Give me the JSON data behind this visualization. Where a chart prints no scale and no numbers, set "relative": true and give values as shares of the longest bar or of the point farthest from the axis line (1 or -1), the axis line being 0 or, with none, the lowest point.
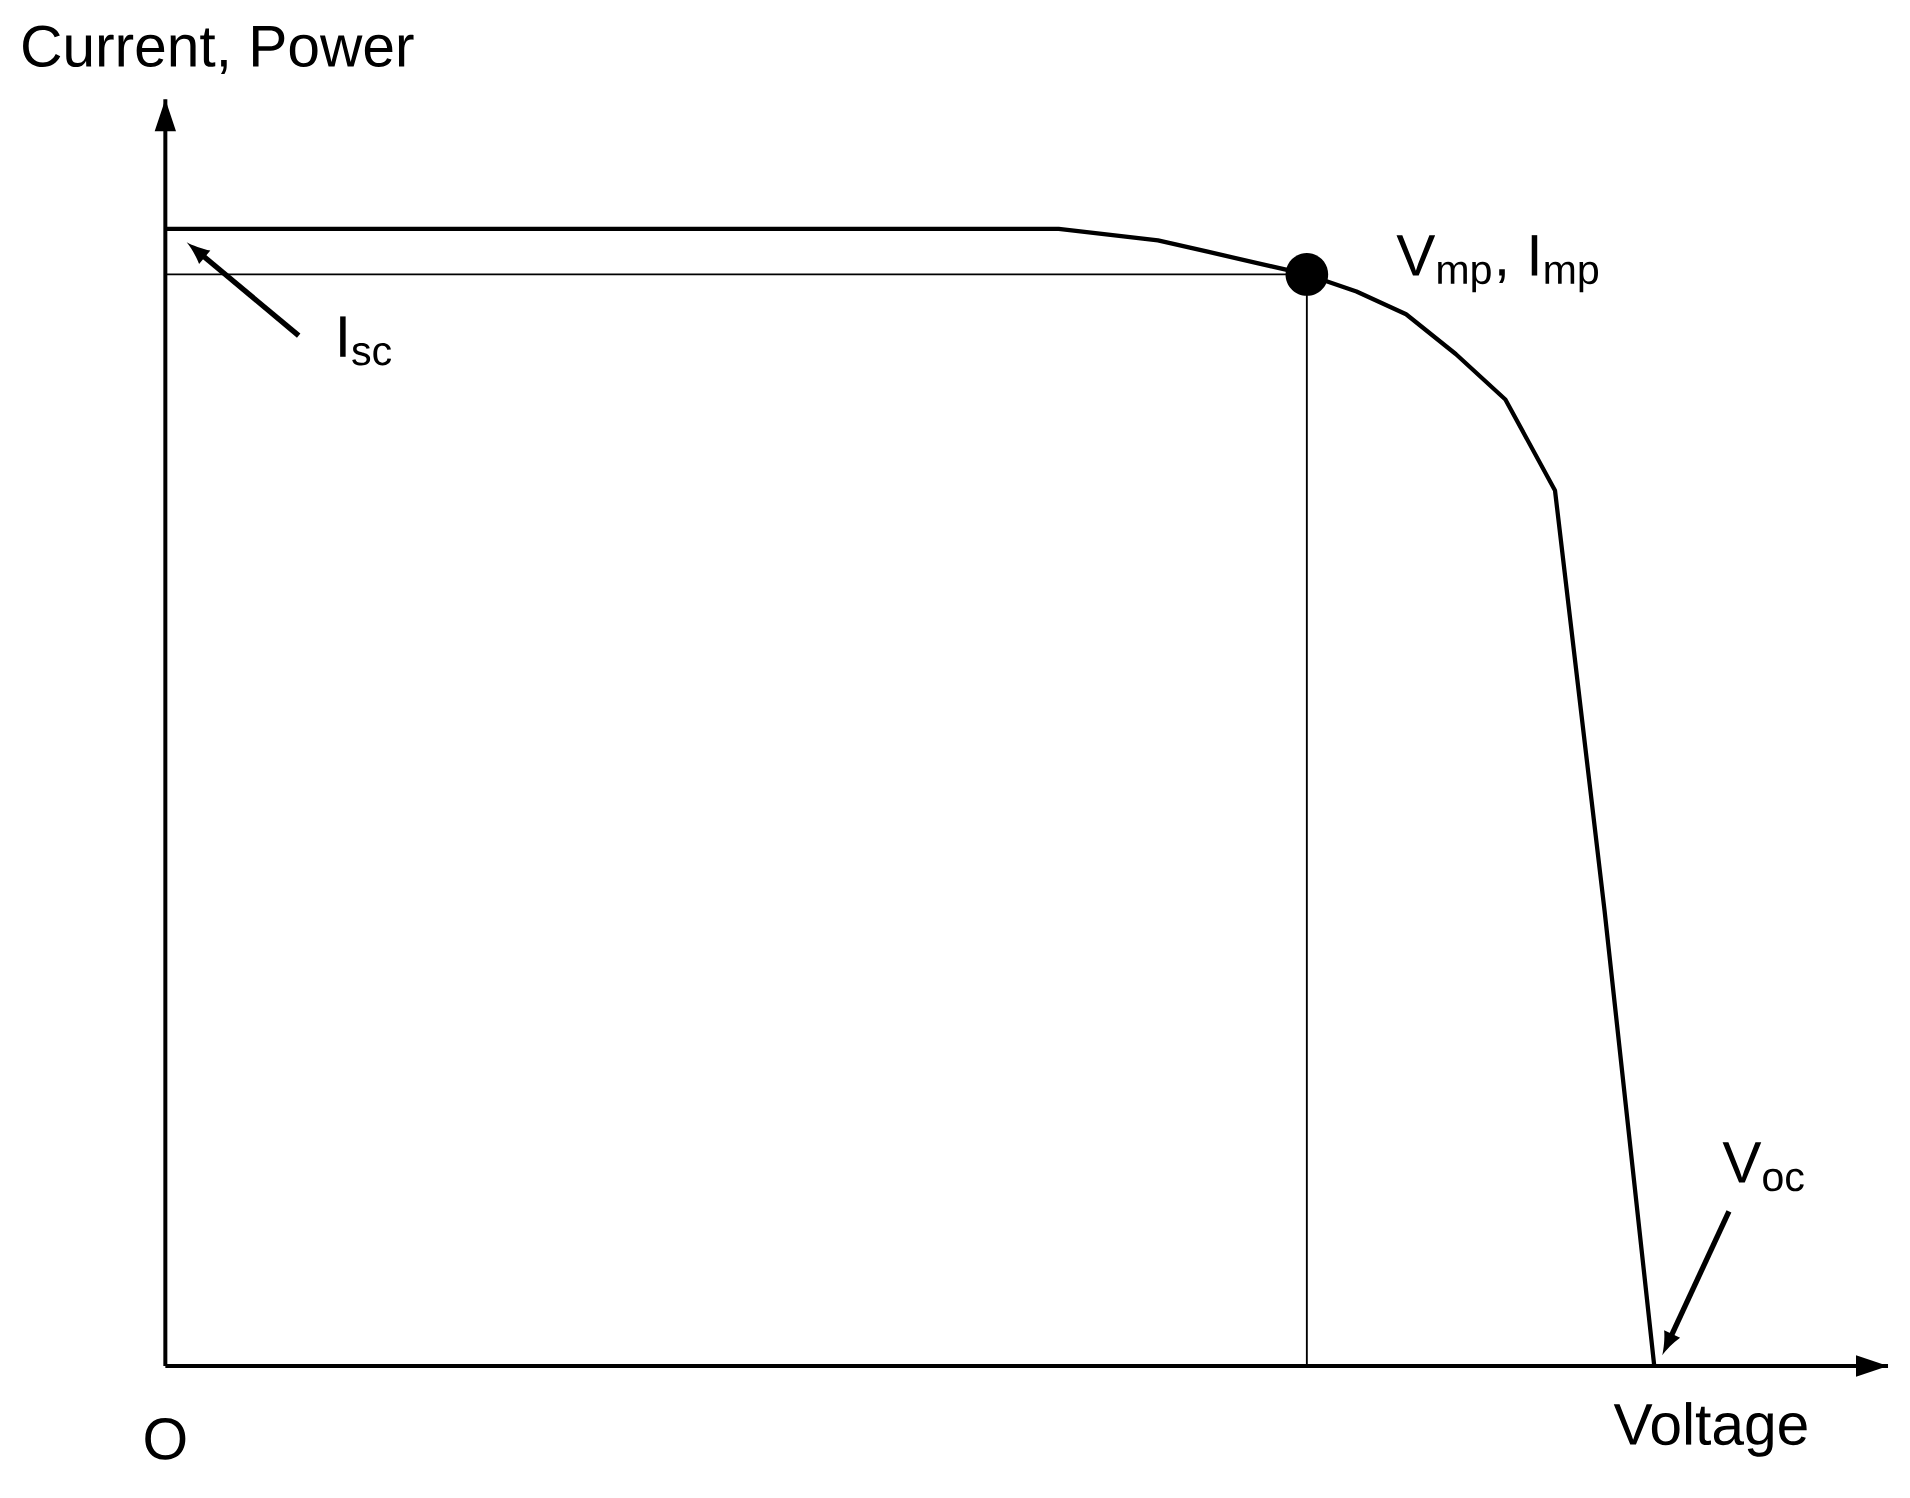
{
  "chart_data": {
    "type": "line",
    "relative": true,
    "xlabel": "Voltage",
    "ylabel": "Current, Power",
    "annotations": [
      "I$_{sc}$",
      "V$_{mp}$, I$_{mp}$",
      "V$_{oc}$",
      "O"
    ],
    "categories": [
      null,
      null,
      null,
      null,
      null,
      null,
      null,
      null,
      null,
      null,
      null,
      null,
      null,
      null,
      null,
      null,
      null,
      null,
      null,
      null,
      null,
      null,
      null,
      null,
      null,
      null,
      null,
      null,
      null,
      null,
      null
    ],
    "ref_lines": [
      {
        "axis": "y",
        "value": 0.96,
        "color": "#000000"
      }
    ],
    "series": [
      {
        "color": "#000000",
        "values": [
          1,
          1,
          1,
          1,
          1,
          1,
          1,
          1,
          1,
          1,
          1,
          1,
          1,
          1,
          1,
          1,
          1,
          1,
          1,
          0.995,
          0.99,
          0.98,
          0.97,
          0.96,
          0.945,
          0.925,
          0.89,
          0.85,
          0.77,
          0.4,
          0
        ]
      }
    ]
  }
}
